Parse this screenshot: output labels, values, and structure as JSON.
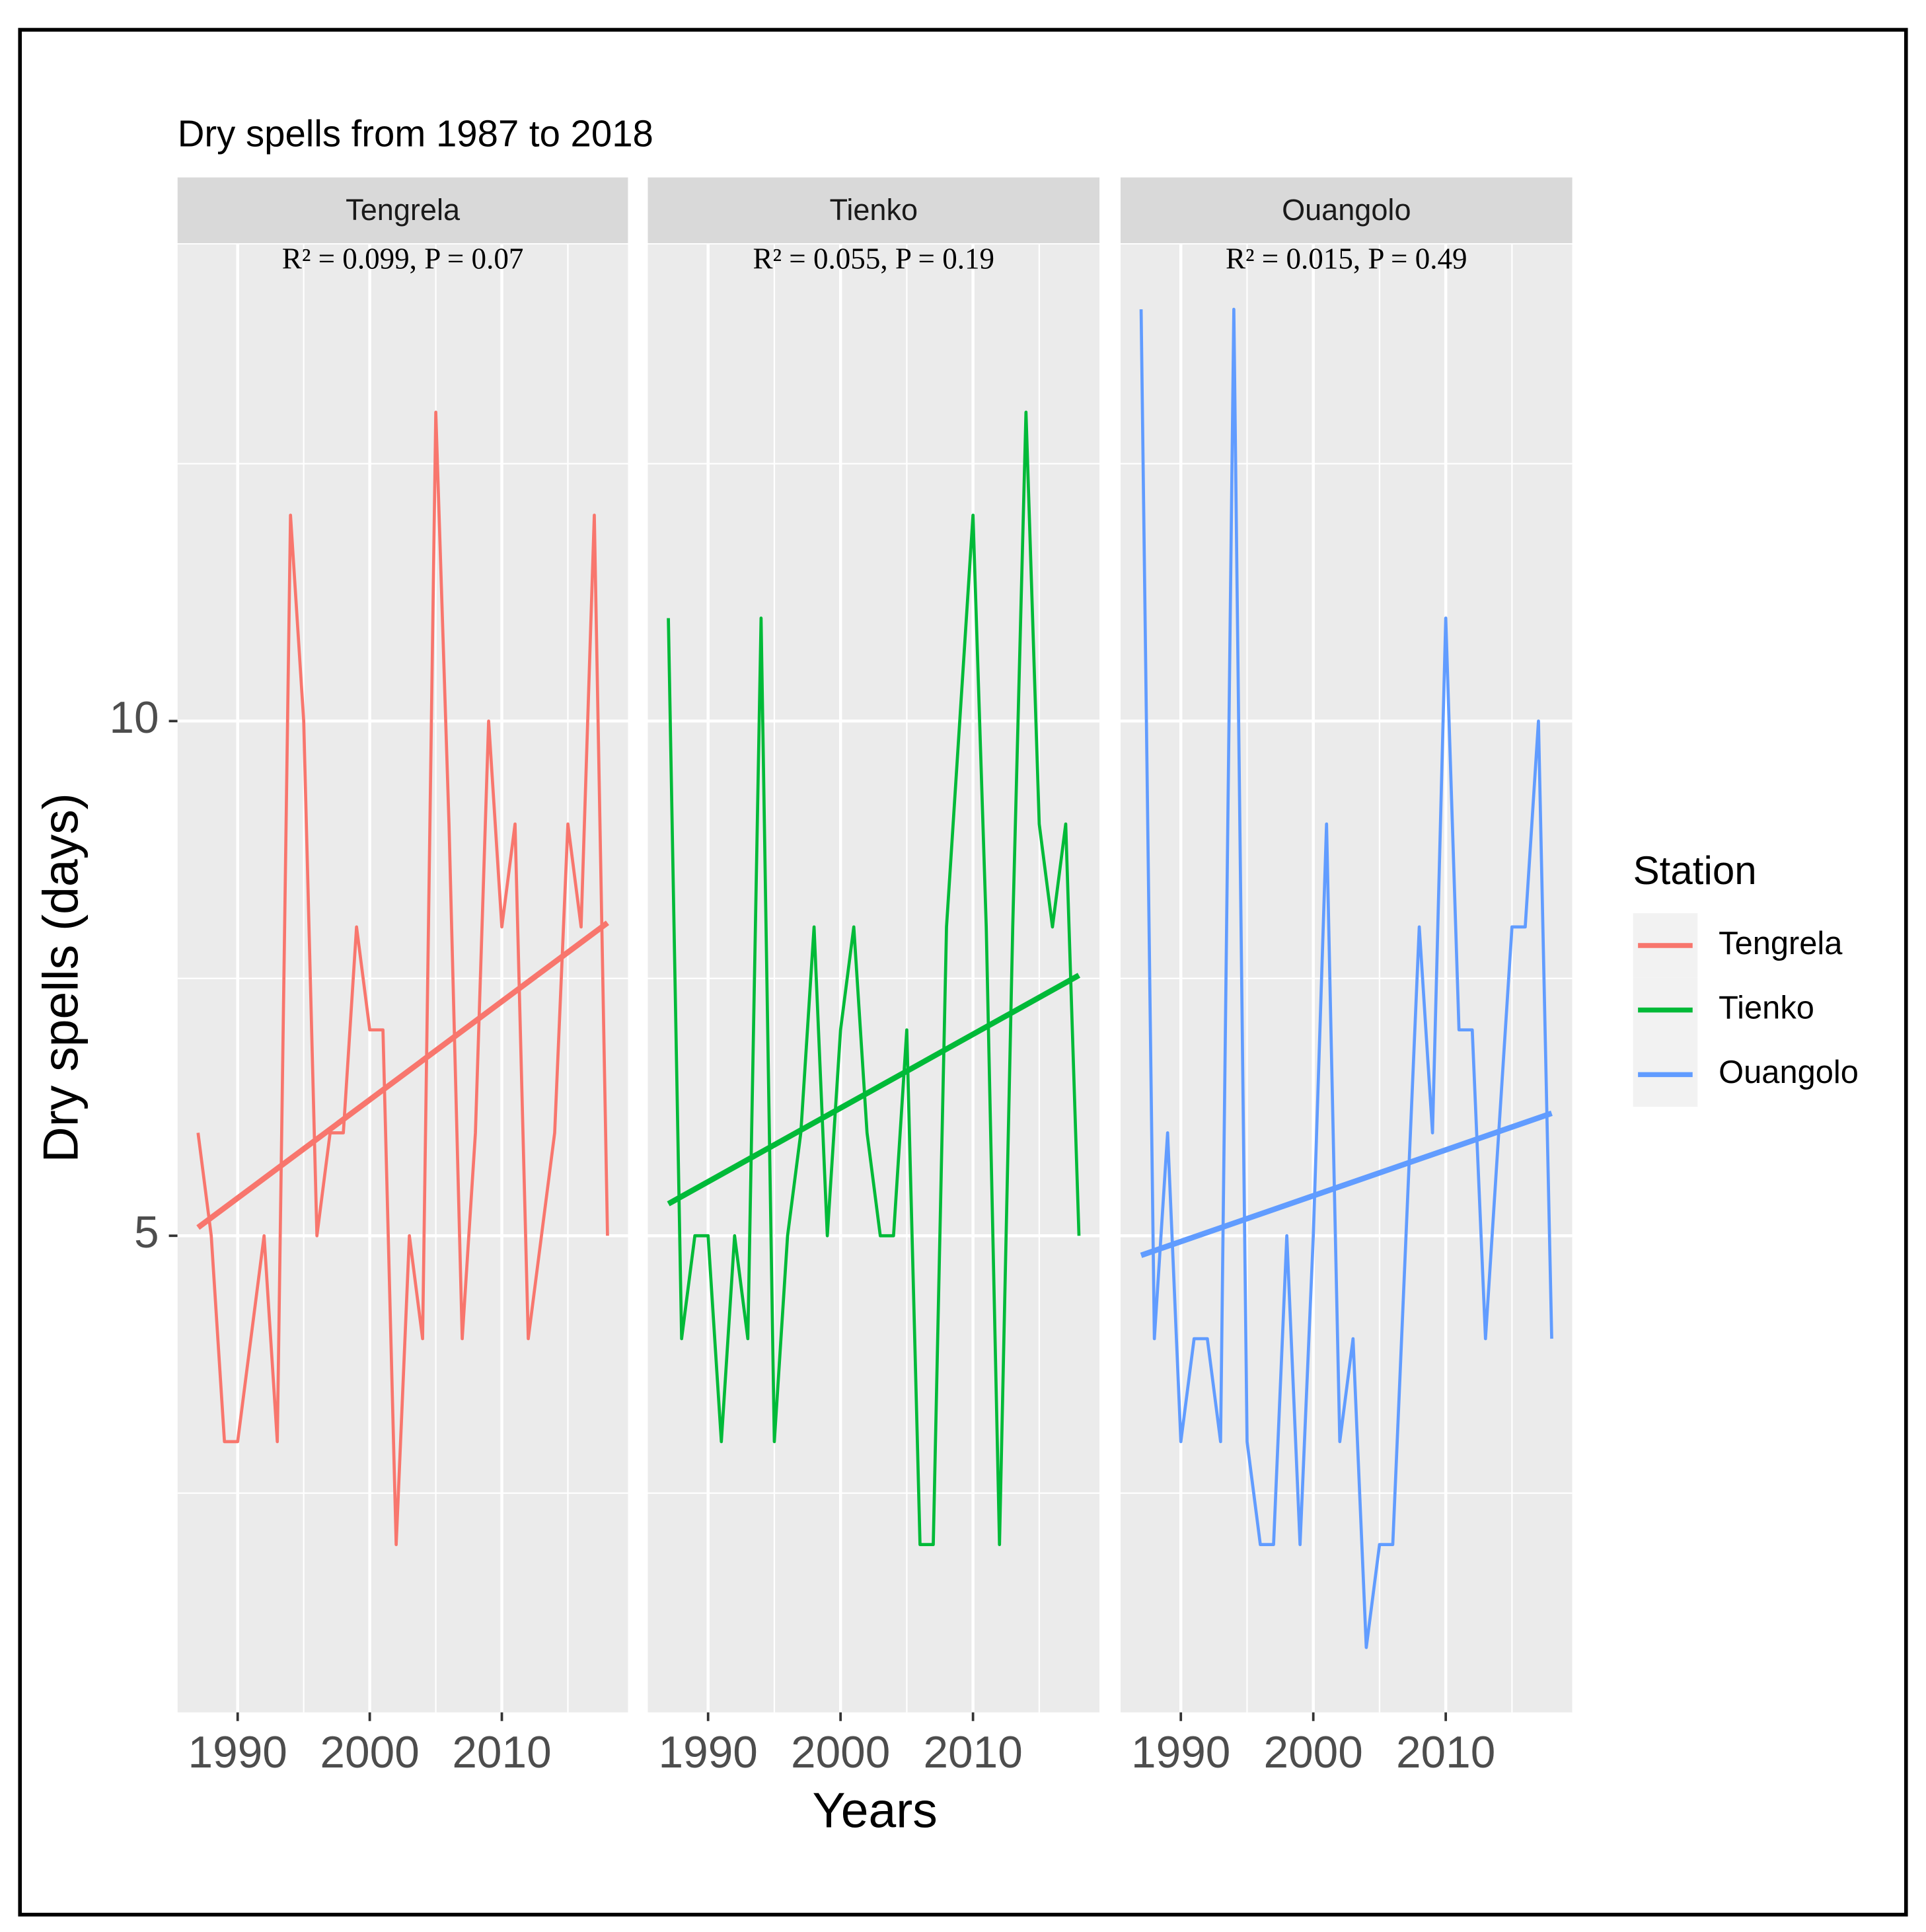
{
  "chart_data": {
    "type": "line",
    "title": "Dry spells from 1987 to 2018",
    "x_label": "Years",
    "y_label": "Dry spells (days)",
    "legend_title": "Station",
    "x": [
      1987,
      1988,
      1989,
      1990,
      1991,
      1992,
      1993,
      1994,
      1995,
      1996,
      1997,
      1998,
      1999,
      2000,
      2001,
      2002,
      2003,
      2004,
      2005,
      2006,
      2007,
      2008,
      2009,
      2010,
      2011,
      2012,
      2013,
      2014,
      2015,
      2016,
      2017,
      2018
    ],
    "xlim": [
      1985.45,
      2019.55
    ],
    "xticks": [
      1990,
      2000,
      2010
    ],
    "xticks_minor": [
      1995,
      2005,
      2015
    ],
    "ylim": [
      0.37,
      14.63
    ],
    "yticks": [
      5,
      10
    ],
    "yticks_minor": [
      2.5,
      7.5,
      12.5
    ],
    "grid": true,
    "legend": "right",
    "trend_x": [
      1987,
      2018
    ],
    "series": [
      {
        "name": "Tengrela",
        "color": "#f8766d",
        "annotation": "R² = 0.099, P = 0.07",
        "values": [
          6,
          5,
          3,
          3,
          4,
          5,
          3,
          12,
          10,
          5,
          6,
          6,
          8,
          7,
          7,
          2,
          5,
          4,
          13,
          9,
          4,
          6,
          10,
          8,
          9,
          4,
          5,
          6,
          9,
          8,
          12,
          5
        ],
        "trend": [
          5.08,
          8.04
        ]
      },
      {
        "name": "Tienko",
        "color": "#00ba38",
        "annotation": "R² = 0.055, P = 0.19",
        "values": [
          11,
          4,
          5,
          5,
          3,
          5,
          4,
          11,
          3,
          5,
          6,
          8,
          5,
          7,
          8,
          6,
          5,
          5,
          7,
          2,
          2,
          8,
          10,
          12,
          8,
          2,
          8,
          13,
          9,
          8,
          9,
          5
        ],
        "trend": [
          5.31,
          7.53
        ]
      },
      {
        "name": "Ouangolo",
        "color": "#619cff",
        "annotation": "R² = 0.015, P = 0.49",
        "values": [
          14,
          4,
          6,
          3,
          4,
          4,
          3,
          14,
          3,
          2,
          2,
          5,
          2,
          5,
          9,
          3,
          4,
          1,
          2,
          2,
          5,
          8,
          6,
          11,
          7,
          7,
          4,
          6,
          8,
          8,
          10,
          4
        ],
        "trend": [
          4.81,
          6.19
        ]
      }
    ]
  }
}
